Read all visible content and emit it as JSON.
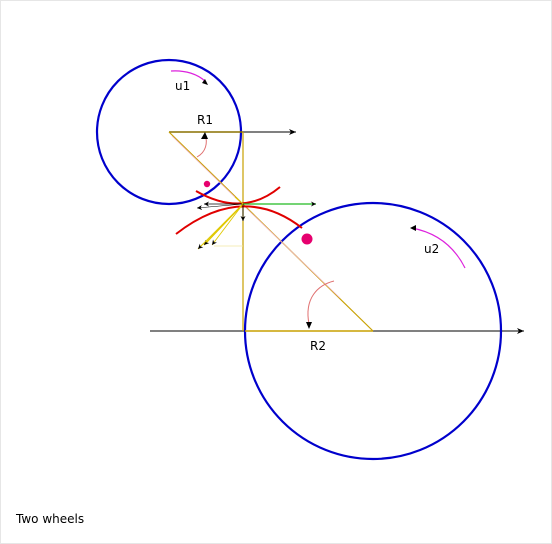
{
  "diagram": {
    "labels": {
      "u1": "u1",
      "u2": "u2",
      "r1": "R1",
      "r2": "R2"
    },
    "colors": {
      "wheel": "#0000cc",
      "radius": "#c8a000",
      "tangent_curve": "#e00000",
      "green_vector": "#22bb22",
      "point": "#e6006e",
      "rotation_arrow": "#dd22dd",
      "arc_arrow": "#e07070",
      "axis": "#000000"
    }
  },
  "caption": "Two wheels"
}
